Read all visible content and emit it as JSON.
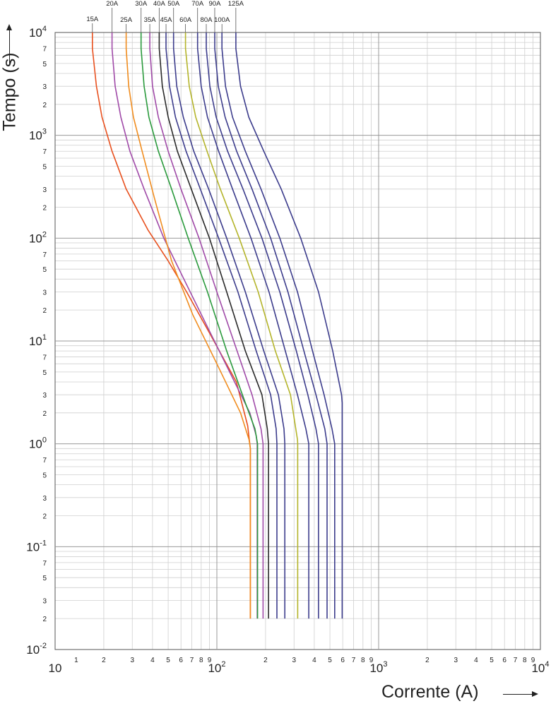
{
  "chart_data": {
    "type": "line",
    "title": "",
    "xlabel": "Corrente (A)",
    "ylabel": "Tempo (s)",
    "x_scale": "log",
    "y_scale": "log",
    "xlim": [
      10,
      10000
    ],
    "ylim": [
      0.01,
      10000
    ],
    "grid": true,
    "legend": "labels above plot at top of each curve",
    "x_decade_labels": [
      {
        "value": 10,
        "label": "10"
      },
      {
        "value": 100,
        "label": "10",
        "sup": "2"
      },
      {
        "value": 1000,
        "label": "10",
        "sup": "3"
      },
      {
        "value": 10000,
        "label": "10",
        "sup": "4"
      }
    ],
    "y_decade_labels": [
      {
        "value": 10000,
        "label": "10",
        "sup": "4"
      },
      {
        "value": 1000,
        "label": "10",
        "sup": "3"
      },
      {
        "value": 100,
        "label": "10",
        "sup": "2"
      },
      {
        "value": 10,
        "label": "10",
        "sup": "1"
      },
      {
        "value": 1,
        "label": "10",
        "sup": "0"
      },
      {
        "value": 0.1,
        "label": "10",
        "sup": "-1"
      },
      {
        "value": 0.01,
        "label": "10",
        "sup": "-2"
      }
    ],
    "minor_tick_labels": [
      "1",
      "2",
      "3",
      "4",
      "5",
      "6",
      "7",
      "8",
      "9"
    ],
    "x_minor_labeled": [
      1,
      2,
      3,
      4,
      5,
      6,
      7,
      8,
      9
    ],
    "y_minor_labeled": [
      2,
      3,
      5,
      7
    ],
    "series": [
      {
        "name": "15A",
        "color": "#e8501e",
        "x": [
          17.0,
          17.0,
          18.0,
          19.5,
          22.5,
          27.5,
          37.5,
          50.0,
          65.0,
          90.0,
          132.0,
          155.0,
          161.0,
          161.0,
          161.0
        ],
        "y": [
          10000,
          7000,
          3000,
          1500,
          700,
          300,
          120,
          60,
          30,
          12,
          4,
          1.5,
          0.9,
          0.8,
          0.02
        ]
      },
      {
        "name": "20A",
        "color": "#a04aa8",
        "x": [
          22.5,
          22.5,
          23.5,
          25.5,
          29.0,
          35.5,
          47.0,
          62.5,
          85.0,
          120.0,
          160.0,
          175.0,
          177.5,
          177.5
        ],
        "y": [
          10000,
          7000,
          3000,
          1500,
          700,
          300,
          100,
          40,
          15,
          5,
          2,
          1.2,
          1.0,
          0.02
        ]
      },
      {
        "name": "25A",
        "color": "#f08c1e",
        "x": [
          27.5,
          27.5,
          28.5,
          30.5,
          34.5,
          41.0,
          52.5,
          71.0,
          100.0,
          140.0,
          158.0,
          161.0,
          161.0
        ],
        "y": [
          10000,
          7000,
          3000,
          1500,
          700,
          250,
          60,
          18,
          6,
          2,
          1.1,
          0.9,
          0.02
        ]
      },
      {
        "name": "30A",
        "color": "#2a9a3c",
        "x": [
          34.0,
          34.0,
          35.5,
          38.0,
          43.5,
          52.5,
          66.5,
          87.5,
          115.0,
          150.0,
          172.0,
          178.5,
          178.5
        ],
        "y": [
          10000,
          7000,
          3000,
          1500,
          700,
          300,
          100,
          30,
          8,
          2.5,
          1.4,
          1.0,
          0.02
        ]
      },
      {
        "name": "35A",
        "color": "#a04aa8",
        "x": [
          38.5,
          38.5,
          40.0,
          43.5,
          50.0,
          60.0,
          77.5,
          100.0,
          130.0,
          165.0,
          187.5,
          193.0,
          193.0
        ],
        "y": [
          10000,
          7000,
          3000,
          1500,
          700,
          300,
          100,
          30,
          9,
          3,
          1.4,
          1.0,
          0.02
        ]
      },
      {
        "name": "40A",
        "color": "#2a2a2a",
        "x": [
          44.0,
          44.0,
          46.0,
          50.0,
          57.0,
          69.5,
          90.0,
          115.0,
          150.0,
          190.0,
          205.0,
          208.5,
          208.5
        ],
        "y": [
          10000,
          7000,
          3000,
          1500,
          700,
          300,
          100,
          30,
          8,
          3,
          1.4,
          1.0,
          0.02
        ]
      },
      {
        "name": "45A",
        "color": "#3c3c8c",
        "x": [
          48.5,
          48.5,
          51.0,
          55.5,
          64.5,
          79.0,
          102.5,
          135.0,
          175.0,
          215.0,
          232.5,
          235.0,
          235.0
        ],
        "y": [
          10000,
          7000,
          3000,
          1500,
          700,
          300,
          100,
          30,
          8,
          3,
          1.4,
          1.0,
          0.02
        ]
      },
      {
        "name": "50A",
        "color": "#3c3c8c",
        "x": [
          54.0,
          54.0,
          56.5,
          62.0,
          72.0,
          89.0,
          115.0,
          150.0,
          195.0,
          240.0,
          260.0,
          263.0,
          263.0
        ],
        "y": [
          10000,
          7000,
          3000,
          1500,
          700,
          300,
          100,
          30,
          8,
          3,
          1.4,
          1.0,
          0.02
        ]
      },
      {
        "name": "60A",
        "color": "#b4b42a",
        "x": [
          64.0,
          64.0,
          67.5,
          74.0,
          87.0,
          105.0,
          137.5,
          180.0,
          230.0,
          285.0,
          315.0,
          316.0,
          316.0
        ],
        "y": [
          10000,
          7000,
          3000,
          1500,
          700,
          300,
          100,
          30,
          8,
          3,
          1.1,
          1.0,
          0.02
        ]
      },
      {
        "name": "70A",
        "color": "#3c3c8c",
        "x": [
          76.0,
          76.0,
          80.0,
          87.5,
          102.5,
          125.0,
          162.5,
          210.0,
          265.0,
          315.0,
          355.0,
          370.0,
          370.0
        ],
        "y": [
          10000,
          7000,
          3000,
          1500,
          700,
          300,
          100,
          30,
          8,
          3,
          1.4,
          1.0,
          0.02
        ]
      },
      {
        "name": "80A",
        "color": "#3c3c8c",
        "x": [
          86.0,
          86.0,
          90.5,
          99.0,
          116.5,
          145.0,
          190.0,
          245.0,
          310.0,
          365.0,
          410.0,
          425.0,
          425.0
        ],
        "y": [
          10000,
          7000,
          3000,
          1500,
          700,
          300,
          100,
          30,
          8,
          3,
          1.4,
          1.0,
          0.02
        ]
      },
      {
        "name": "90A",
        "color": "#3c3c8c",
        "x": [
          97.0,
          97.0,
          102.0,
          112.5,
          132.5,
          165.0,
          215.0,
          275.0,
          345.0,
          410.0,
          465.0,
          480.0,
          480.0
        ],
        "y": [
          10000,
          7000,
          3000,
          1500,
          700,
          300,
          100,
          30,
          8,
          3,
          1.4,
          1.0,
          0.02
        ]
      },
      {
        "name": "100A",
        "color": "#3c3c8c",
        "x": [
          107.5,
          107.5,
          113.0,
          125.0,
          150.0,
          187.5,
          245.0,
          315.0,
          390.0,
          460.0,
          515.0,
          535.0,
          535.0
        ],
        "y": [
          10000,
          7000,
          3000,
          1500,
          700,
          300,
          100,
          30,
          8,
          3,
          1.4,
          1.0,
          0.02
        ]
      },
      {
        "name": "125A",
        "color": "#3c3c8c",
        "x": [
          131.0,
          131.0,
          140.0,
          157.5,
          195.0,
          250.0,
          330.0,
          425.0,
          520.0,
          590.0,
          595.0,
          595.0
        ],
        "y": [
          10000,
          7000,
          3000,
          1500,
          700,
          300,
          100,
          30,
          8,
          3,
          2.5,
          0.02
        ]
      }
    ]
  }
}
